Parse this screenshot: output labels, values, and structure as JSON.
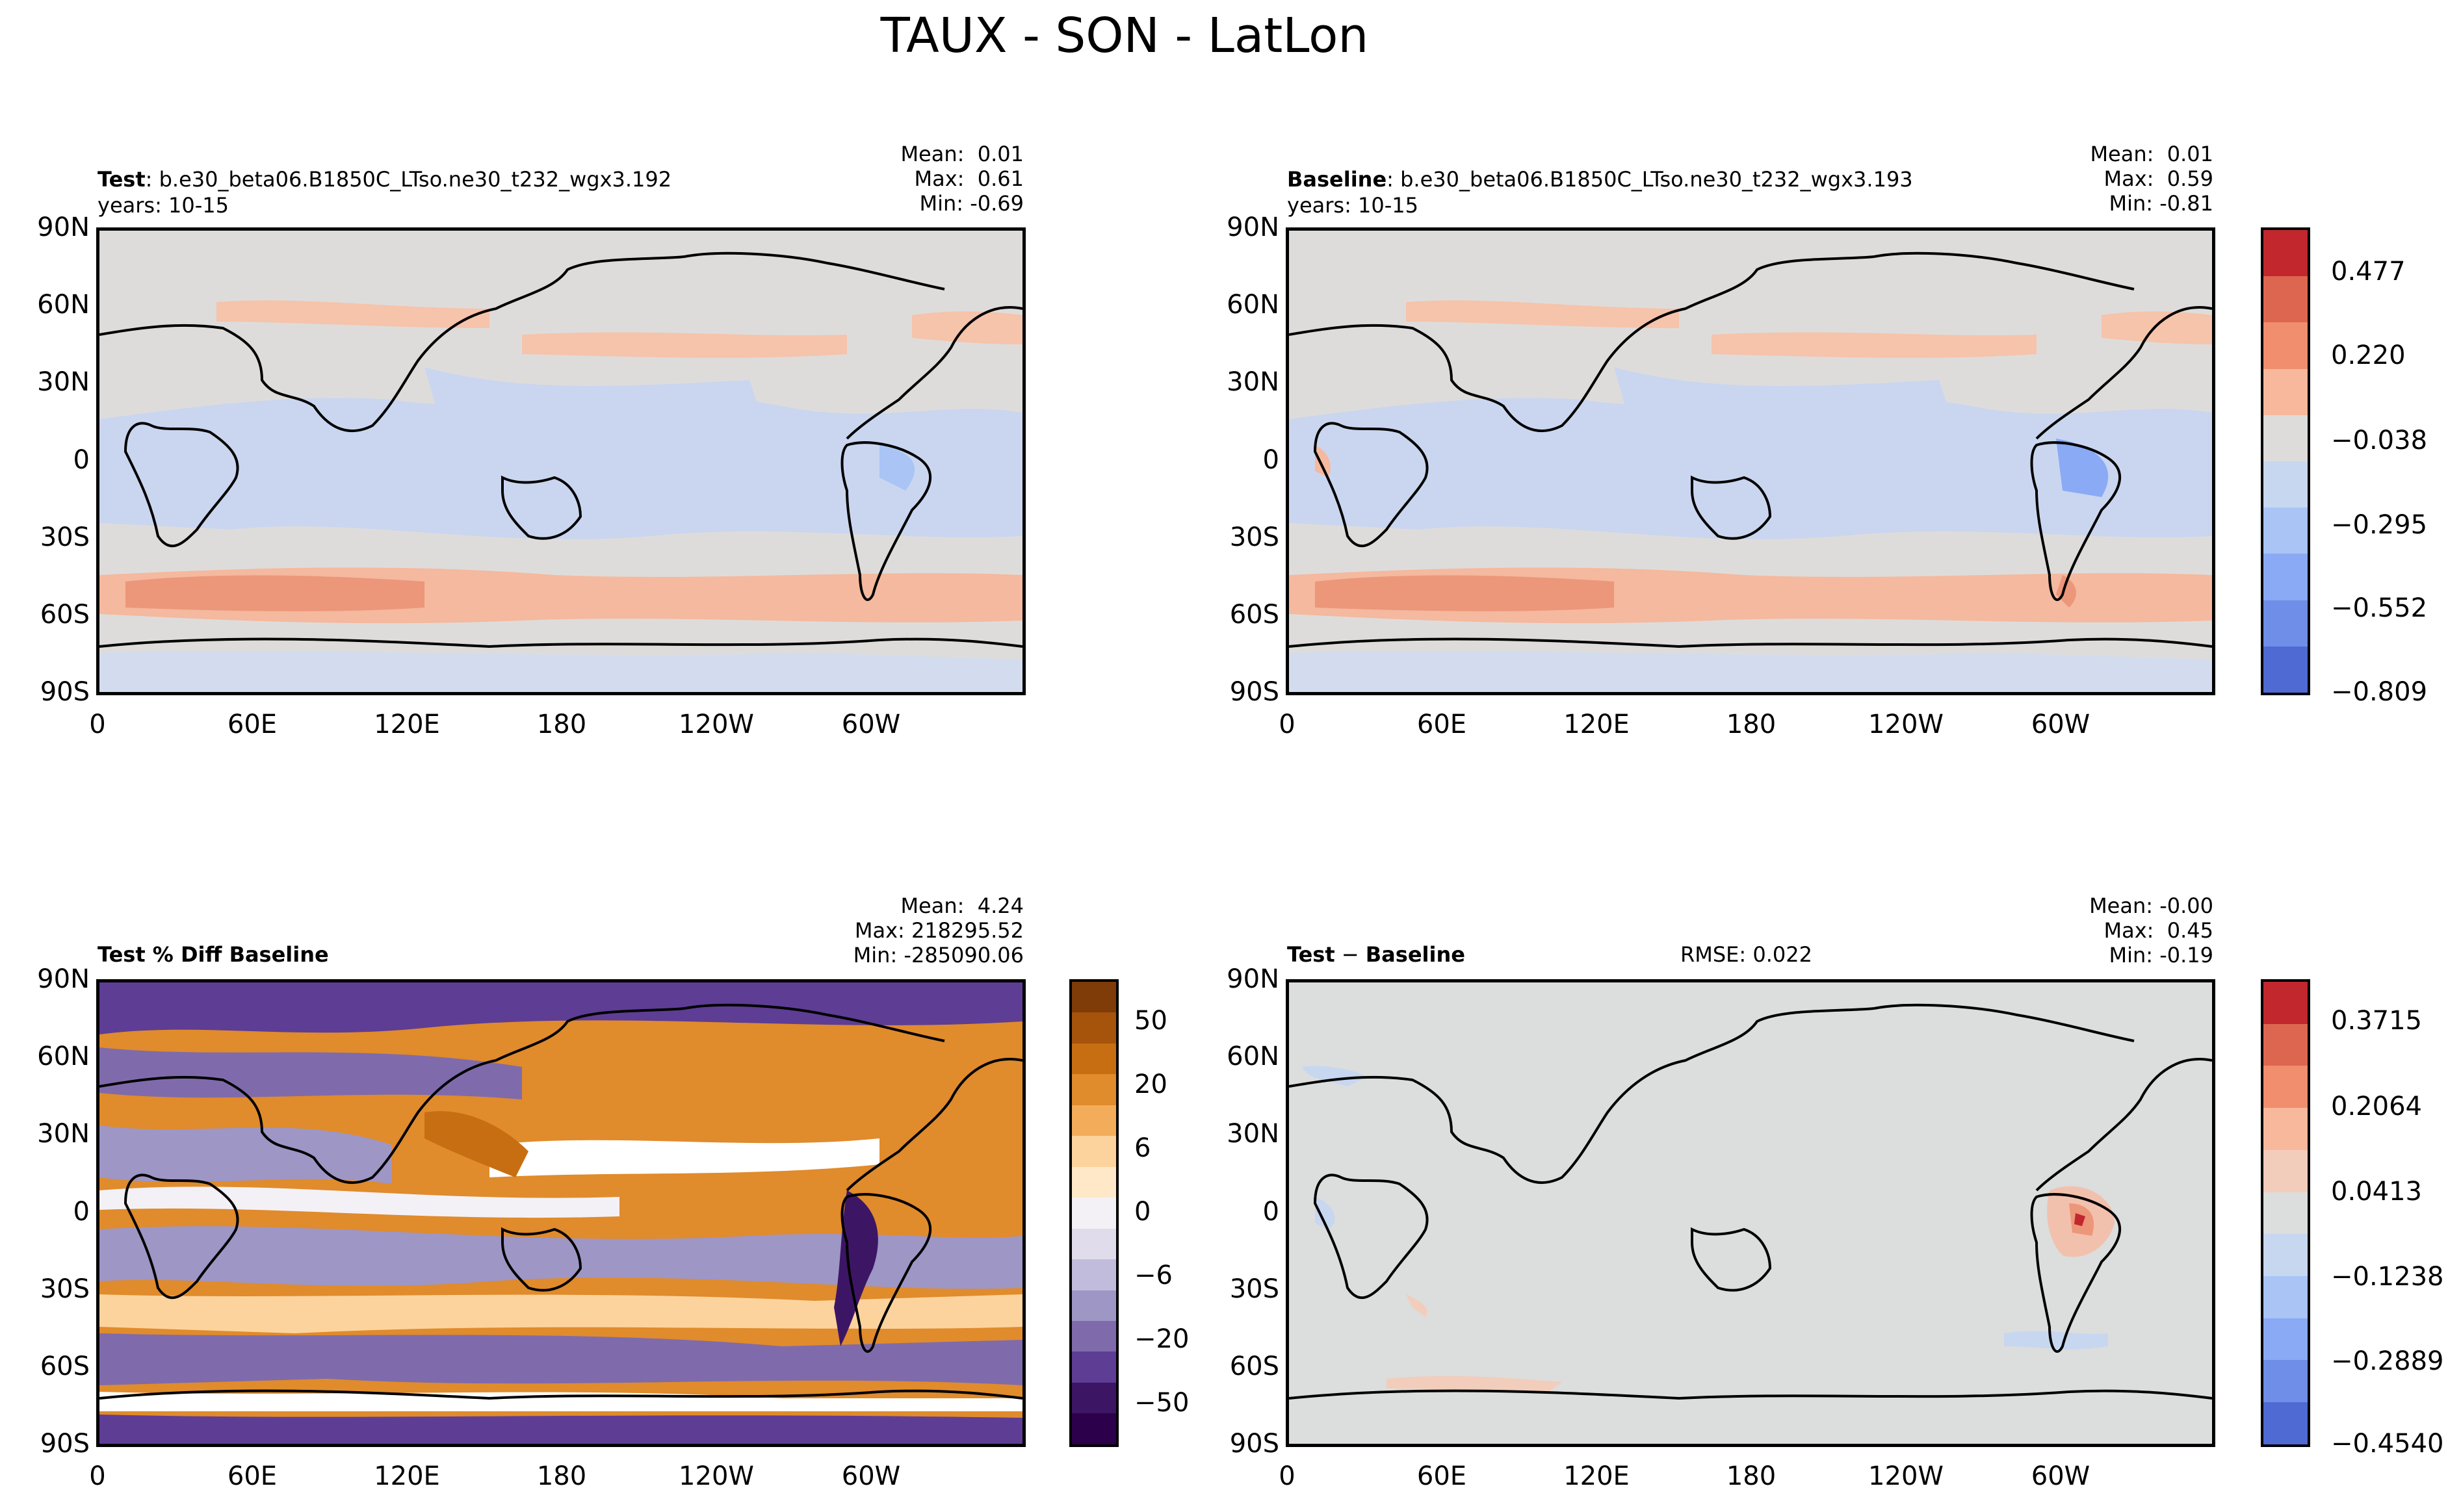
{
  "figure_title": "TAUX - SON - LatLon",
  "chart_data": [
    {
      "type": "heatmap",
      "panel": "test",
      "title_bold": "Test",
      "title_rest": ": b.e30_beta06.B1850C_LTso.ne30_t232_wgx3.192",
      "subtitle": "years: 10-15",
      "stats": {
        "mean": "0.01",
        "max": "0.61",
        "min": "-0.69"
      },
      "stats_labels": {
        "mean": "Mean:",
        "max": "Max:",
        "min": "Min:"
      },
      "yticks": [
        "90N",
        "60N",
        "30N",
        "0",
        "30S",
        "60S",
        "90S"
      ],
      "xticks": [
        "0",
        "60E",
        "120E",
        "180",
        "120W",
        "60W"
      ]
    },
    {
      "type": "heatmap",
      "panel": "baseline",
      "title_bold": "Baseline",
      "title_rest": ": b.e30_beta06.B1850C_LTso.ne30_t232_wgx3.193",
      "subtitle": "years: 10-15",
      "stats": {
        "mean": "0.01",
        "max": "0.59",
        "min": "-0.81"
      },
      "stats_labels": {
        "mean": "Mean:",
        "max": "Max:",
        "min": "Min:"
      },
      "yticks": [
        "90N",
        "60N",
        "30N",
        "0",
        "30S",
        "60S",
        "90S"
      ],
      "xticks": [
        "0",
        "60E",
        "120E",
        "180",
        "120W",
        "60W"
      ],
      "colorbar": {
        "labels": [
          "0.477",
          "0.220",
          "−0.038",
          "−0.295",
          "−0.552",
          "−0.809"
        ],
        "colors": [
          "#c1272d",
          "#dd6651",
          "#f08e6e",
          "#f7b89c",
          "#dedcdb",
          "#c7d7f0",
          "#a9c4f5",
          "#8aaaf5",
          "#6f8ee8",
          "#4f6ad2"
        ]
      }
    },
    {
      "type": "heatmap",
      "panel": "percent_diff",
      "title_bold": "Test % Diff Baseline",
      "stats": {
        "mean": "4.24",
        "max": "218295.52",
        "min": "-285090.06"
      },
      "stats_labels": {
        "mean": "Mean:",
        "max": "Max:",
        "min": "Min:"
      },
      "yticks": [
        "90N",
        "60N",
        "30N",
        "0",
        "30S",
        "60S",
        "90S"
      ],
      "xticks": [
        "0",
        "60E",
        "120E",
        "180",
        "120W",
        "60W"
      ],
      "colorbar": {
        "labels": [
          "50",
          "20",
          "6",
          "0",
          "−6",
          "−20",
          "−50"
        ],
        "colors": [
          "#7f3b08",
          "#a6530c",
          "#c86e12",
          "#e08b2c",
          "#f3ad5a",
          "#fdd39d",
          "#fee8c8",
          "#f4f1f6",
          "#e0dcec",
          "#c2bcdc",
          "#9e96c5",
          "#7f6bab",
          "#5e3d94",
          "#3c1665",
          "#2d004b"
        ]
      }
    },
    {
      "type": "heatmap",
      "panel": "difference",
      "title_bold": "Test",
      "title_mid": " − ",
      "title_bold2": "Baseline",
      "rmse": "RMSE: 0.022",
      "stats": {
        "mean": "-0.00",
        "max": "0.45",
        "min": "-0.19"
      },
      "stats_labels": {
        "mean": "Mean:",
        "max": "Max:",
        "min": "Min:"
      },
      "yticks": [
        "90N",
        "60N",
        "30N",
        "0",
        "30S",
        "60S",
        "90S"
      ],
      "xticks": [
        "0",
        "60E",
        "120E",
        "180",
        "120W",
        "60W"
      ],
      "colorbar": {
        "labels": [
          "0.3715",
          "0.2064",
          "0.0413",
          "−0.1238",
          "−0.2889",
          "−0.4540"
        ],
        "colors": [
          "#c1272d",
          "#dd6651",
          "#f08e6e",
          "#f7b89c",
          "#f2cdbb",
          "#dcdddd",
          "#c7d7f0",
          "#a9c4f5",
          "#8aaaf5",
          "#6f8ee8",
          "#4f6ad2"
        ]
      }
    }
  ]
}
